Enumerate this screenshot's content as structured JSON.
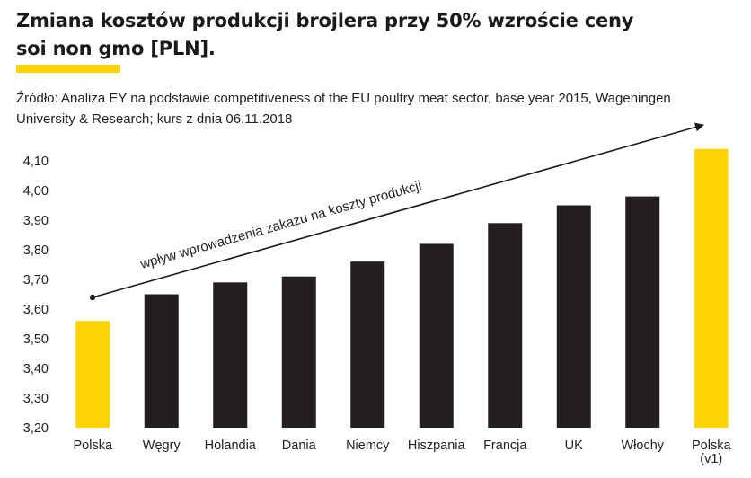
{
  "title": "Zmiana kosztów produkcji brojlera przy 50% wzroście ceny soi non gmo [PLN].",
  "source": "Źródło: Analiza EY na podstawie competitiveness of the EU poultry meat sector, base year 2015, Wageningen University & Research; kurs z dnia 06.11.2018",
  "colors": {
    "accent": "#FFD400",
    "bar": "#231F20",
    "text": "#1a1a1a"
  },
  "chart_data": {
    "type": "bar",
    "categories": [
      "Polska",
      "Węgry",
      "Holandia",
      "Dania",
      "Niemcy",
      "Hiszpania",
      "Francja",
      "UK",
      "Włochy",
      "Polska (v1)"
    ],
    "category_lines": [
      [
        "Polska"
      ],
      [
        "Węgry"
      ],
      [
        "Holandia"
      ],
      [
        "Dania"
      ],
      [
        "Niemcy"
      ],
      [
        "Hiszpania"
      ],
      [
        "Francja"
      ],
      [
        "UK"
      ],
      [
        "Włochy"
      ],
      [
        "Polska",
        "(v1)"
      ]
    ],
    "values": [
      3.56,
      3.65,
      3.69,
      3.71,
      3.76,
      3.82,
      3.89,
      3.95,
      3.98,
      4.14
    ],
    "highlighted": [
      0,
      9
    ],
    "ylim": [
      3.2,
      4.1
    ],
    "yticks": [
      "3,20",
      "3,30",
      "3,40",
      "3,50",
      "3,60",
      "3,70",
      "3,80",
      "3,90",
      "4,00",
      "4,10"
    ],
    "ytick_values": [
      3.2,
      3.3,
      3.4,
      3.5,
      3.6,
      3.7,
      3.8,
      3.9,
      4.0,
      4.1
    ],
    "annotation": "wpływ wprowadzenia zakazu na koszty produkcji",
    "xlabel": "",
    "ylabel": "",
    "grid": false
  }
}
